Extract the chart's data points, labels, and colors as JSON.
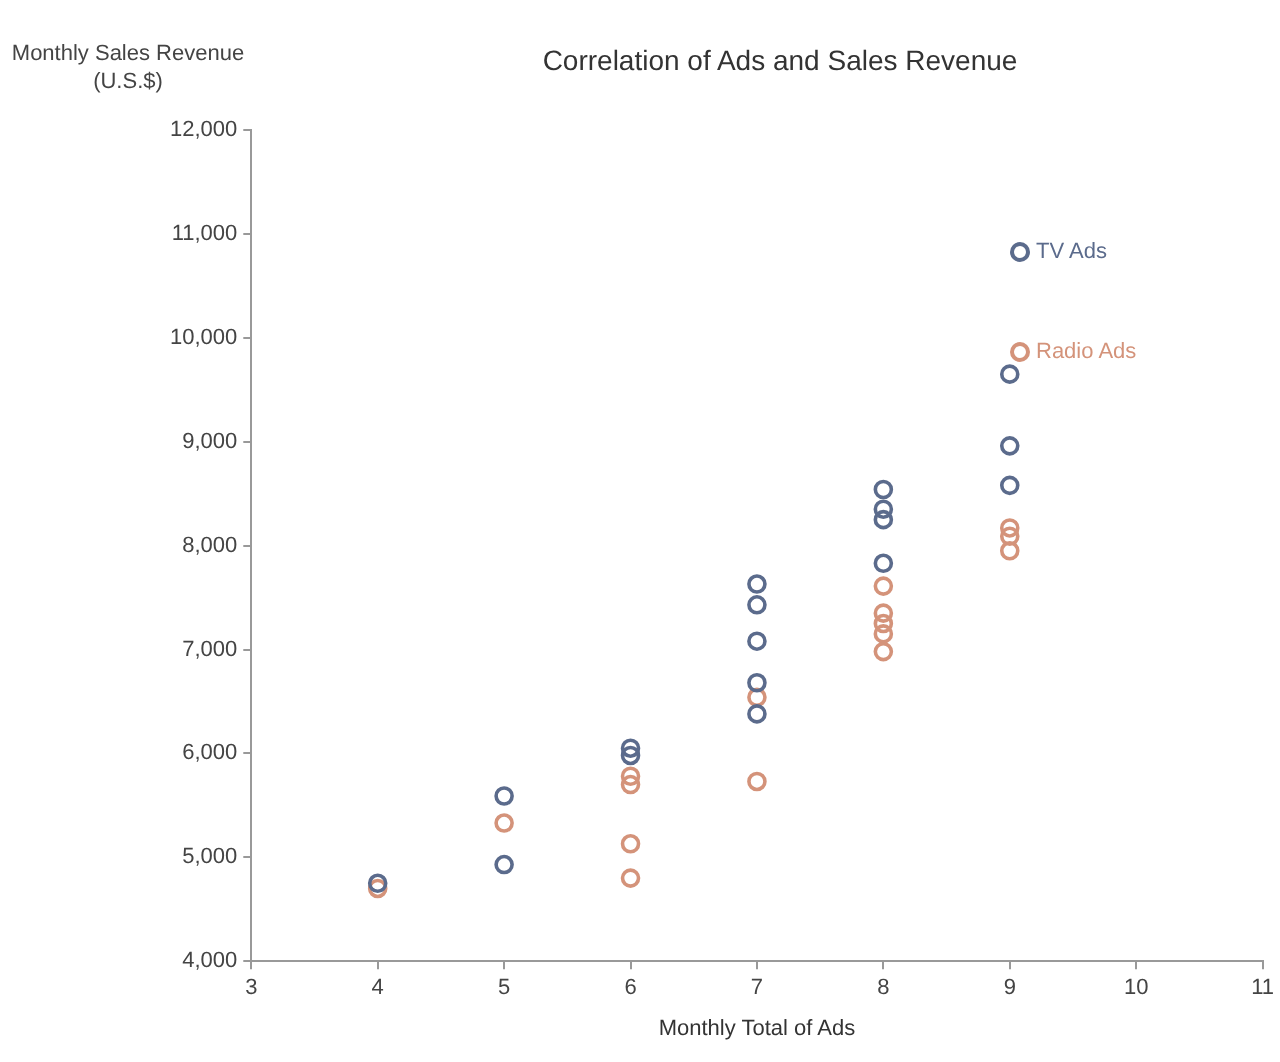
{
  "chart_data": {
    "type": "scatter",
    "title": "Correlation of Ads and Sales Revenue",
    "xlabel": "Monthly Total of Ads",
    "ylabel": "Monthly Sales Revenue (U.S.$)",
    "series": [
      {
        "name": "TV Ads",
        "color": "#5b6b8c",
        "x": [
          4,
          5,
          5,
          6,
          6,
          7,
          7,
          7,
          7,
          7,
          8,
          8,
          8,
          8,
          9,
          9,
          9
        ],
        "values": [
          4750,
          5590,
          4930,
          6050,
          5980,
          7630,
          7430,
          7080,
          6680,
          6380,
          8540,
          8350,
          8250,
          7830,
          9650,
          8960,
          8580
        ]
      },
      {
        "name": "Radio Ads",
        "color": "#d4937a",
        "x": [
          4,
          5,
          6,
          6,
          6,
          6,
          7,
          7,
          8,
          8,
          8,
          8,
          8,
          9,
          9,
          9
        ],
        "values": [
          4700,
          5330,
          5780,
          5700,
          5130,
          4800,
          6540,
          5730,
          7610,
          7350,
          7250,
          7150,
          6980,
          8170,
          8090,
          7950
        ]
      }
    ],
    "xlim": [
      3,
      11
    ],
    "xticks": [
      3,
      4,
      5,
      6,
      7,
      8,
      9,
      10,
      11
    ],
    "ylim": [
      4000,
      12000
    ],
    "yticks": [
      {
        "value": 4000,
        "label": "4,000"
      },
      {
        "value": 5000,
        "label": "5,000"
      },
      {
        "value": 6000,
        "label": "6,000"
      },
      {
        "value": 7000,
        "label": "7,000"
      },
      {
        "value": 8000,
        "label": "8,000"
      },
      {
        "value": 9000,
        "label": "9,000"
      },
      {
        "value": 10000,
        "label": "10,000"
      },
      {
        "value": 11000,
        "label": "11,000"
      },
      {
        "value": 12000,
        "label": "12,000"
      }
    ],
    "grid": false,
    "legend": "top right",
    "marker": "circle"
  }
}
